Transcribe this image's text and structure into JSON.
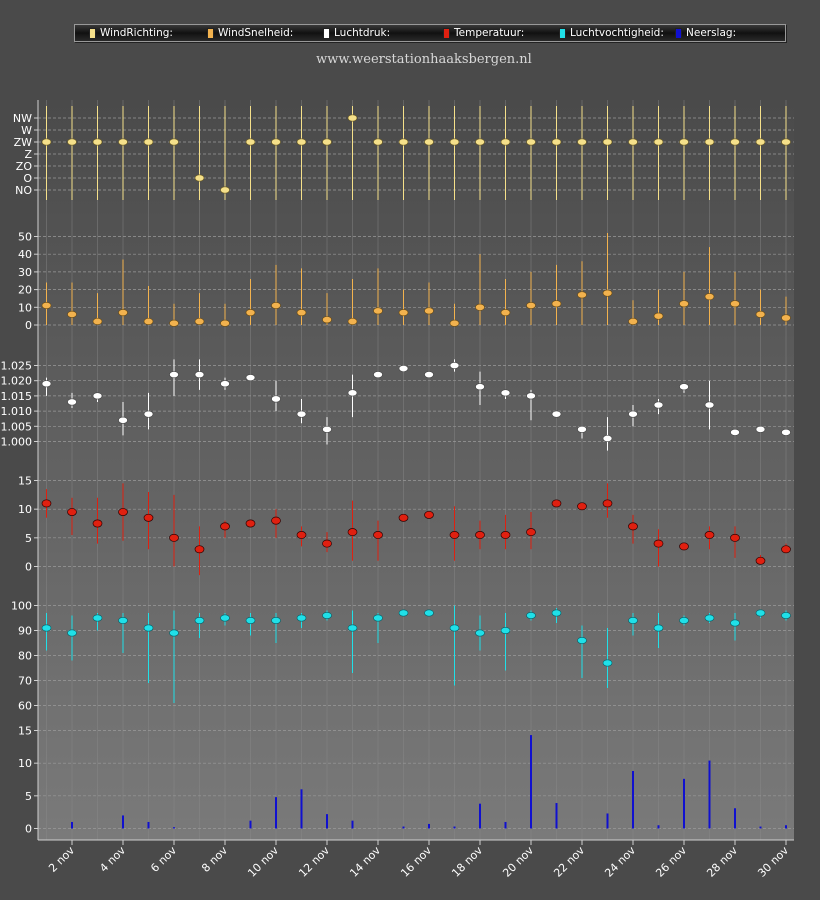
{
  "site_url": "www.weerstationhaaksbergen.nl",
  "legend": [
    {
      "label": "WindRichting:",
      "color": "#f5e08a"
    },
    {
      "label": "WindSnelheid:",
      "color": "#f2b24e"
    },
    {
      "label": "Luchtdruk:",
      "color": "#ffffff"
    },
    {
      "label": "Temperatuur:",
      "color": "#e02010"
    },
    {
      "label": "Luchtvochtigheid:",
      "color": "#20e0e8"
    },
    {
      "label": "Neerslag:",
      "color": "#1010d0"
    }
  ],
  "chart_data": {
    "type": "scatter",
    "days": [
      1,
      2,
      3,
      4,
      5,
      6,
      7,
      8,
      9,
      10,
      11,
      12,
      13,
      14,
      15,
      16,
      17,
      18,
      19,
      20,
      21,
      22,
      23,
      24,
      25,
      26,
      27,
      28,
      29,
      30
    ],
    "x_tick_labels": [
      "2 nov",
      "4 nov",
      "6 nov",
      "8 nov",
      "10 nov",
      "12 nov",
      "14 nov",
      "16 nov",
      "18 nov",
      "20 nov",
      "22 nov",
      "24 nov",
      "26 nov",
      "28 nov",
      "30 nov"
    ],
    "wind_direction": {
      "categories": [
        "NW",
        "W",
        "ZW",
        "Z",
        "ZO",
        "O",
        "NO"
      ],
      "values": [
        "ZW",
        "ZW",
        "ZW",
        "ZW",
        "ZW",
        "ZW",
        "O",
        "NO",
        "ZW",
        "ZW",
        "ZW",
        "ZW",
        "NW",
        "ZW",
        "ZW",
        "ZW",
        "ZW",
        "ZW",
        "ZW",
        "ZW",
        "ZW",
        "ZW",
        "ZW",
        "ZW",
        "ZW",
        "ZW",
        "ZW",
        "ZW",
        "ZW",
        "ZW"
      ]
    },
    "wind_speed": {
      "yticks": [
        0,
        10,
        20,
        30,
        40,
        50
      ],
      "ylim": [
        0,
        55
      ],
      "values": [
        11,
        6,
        2,
        7,
        2,
        1,
        2,
        1,
        7,
        11,
        7,
        3,
        2,
        8,
        7,
        8,
        1,
        10,
        7,
        11,
        12,
        17,
        18,
        2,
        5,
        12,
        16,
        12,
        6,
        4
      ],
      "max": [
        24,
        24,
        18,
        37,
        22,
        12,
        18,
        12,
        26,
        34,
        32,
        18,
        26,
        32,
        20,
        24,
        12,
        40,
        26,
        30,
        34,
        36,
        52,
        14,
        20,
        30,
        44,
        30,
        20,
        16
      ]
    },
    "pressure": {
      "yticks": [
        1.0,
        1.005,
        1.01,
        1.015,
        1.02,
        1.025
      ],
      "ylim": [
        0.995,
        1.03
      ],
      "values": [
        1.019,
        1.013,
        1.015,
        1.007,
        1.009,
        1.022,
        1.022,
        1.019,
        1.021,
        1.014,
        1.009,
        1.004,
        1.016,
        1.022,
        1.024,
        1.022,
        1.025,
        1.018,
        1.016,
        1.015,
        1.009,
        1.004,
        1.001,
        1.009,
        1.012,
        1.018,
        1.012,
        1.003,
        1.004,
        1.003
      ],
      "min": [
        1.015,
        1.011,
        1.013,
        1.002,
        1.004,
        1.015,
        1.017,
        1.017,
        1.02,
        1.01,
        1.006,
        0.999,
        1.008,
        1.021,
        1.024,
        1.021,
        1.023,
        1.012,
        1.014,
        1.007,
        1.008,
        1.001,
        0.997,
        1.005,
        1.009,
        1.016,
        1.004,
        1.003,
        1.004,
        1.003
      ],
      "max": [
        1.021,
        1.016,
        1.016,
        1.013,
        1.016,
        1.027,
        1.027,
        1.021,
        1.022,
        1.02,
        1.014,
        1.008,
        1.022,
        1.023,
        1.025,
        1.023,
        1.027,
        1.023,
        1.017,
        1.017,
        1.01,
        1.005,
        1.008,
        1.012,
        1.014,
        1.019,
        1.02,
        1.004,
        1.005,
        1.004
      ]
    },
    "temperature": {
      "yticks": [
        0,
        5,
        10,
        15
      ],
      "ylim": [
        -2,
        17
      ],
      "values": [
        11,
        9.5,
        7.5,
        9.5,
        8.5,
        5,
        3,
        7,
        7.5,
        8,
        5.5,
        4,
        6,
        5.5,
        8.5,
        9,
        5.5,
        5.5,
        5.5,
        6,
        11,
        10.5,
        11,
        7,
        4,
        3.5,
        5.5,
        5,
        1,
        3
      ],
      "min": [
        8.5,
        5.5,
        4,
        4.5,
        3,
        0,
        -1.5,
        5,
        7,
        5,
        3.5,
        2.5,
        1,
        1,
        8,
        8.5,
        1,
        3,
        3,
        3,
        10.5,
        10,
        8.5,
        4,
        0,
        3,
        3,
        1.5,
        0.5,
        2.5
      ],
      "max": [
        13.5,
        12,
        12,
        14.5,
        13,
        12.5,
        7,
        8,
        8,
        10,
        7,
        6,
        11.5,
        8,
        9,
        9.5,
        10.5,
        8,
        9,
        9.5,
        11.5,
        11,
        14.5,
        9,
        6.5,
        4,
        7,
        7,
        2,
        4
      ]
    },
    "humidity": {
      "yticks": [
        60,
        70,
        80,
        90,
        100
      ],
      "ylim": [
        57,
        102
      ],
      "values": [
        91,
        89,
        95,
        94,
        91,
        89,
        94,
        95,
        94,
        94,
        95,
        96,
        91,
        95,
        97,
        97,
        91,
        89,
        90,
        96,
        97,
        86,
        77,
        94,
        91,
        94,
        95,
        93,
        97,
        96
      ],
      "min": [
        82,
        78,
        90,
        81,
        69,
        61,
        87,
        92,
        88,
        85,
        91,
        94,
        73,
        85,
        96,
        96,
        68,
        82,
        74,
        94,
        93,
        71,
        67,
        88,
        83,
        92,
        93,
        86,
        95,
        94
      ],
      "max": [
        97,
        96,
        97,
        97,
        97,
        98,
        97,
        97,
        97,
        97,
        97,
        98,
        98,
        97,
        98,
        98,
        100,
        96,
        97,
        98,
        99,
        92,
        91,
        97,
        97,
        96,
        97,
        97,
        98,
        98
      ]
    },
    "precipitation": {
      "yticks": [
        0,
        5,
        10,
        15
      ],
      "ylim": [
        0,
        16
      ],
      "values": [
        0,
        1,
        0,
        2,
        1,
        0.2,
        0,
        0,
        1.2,
        4.8,
        6,
        2.2,
        1.2,
        0,
        0.3,
        0.7,
        0.3,
        3.8,
        1,
        14.3,
        3.9,
        0,
        2.3,
        8.8,
        0.5,
        7.6,
        10.4,
        3.1,
        0.3,
        0.5
      ]
    }
  }
}
